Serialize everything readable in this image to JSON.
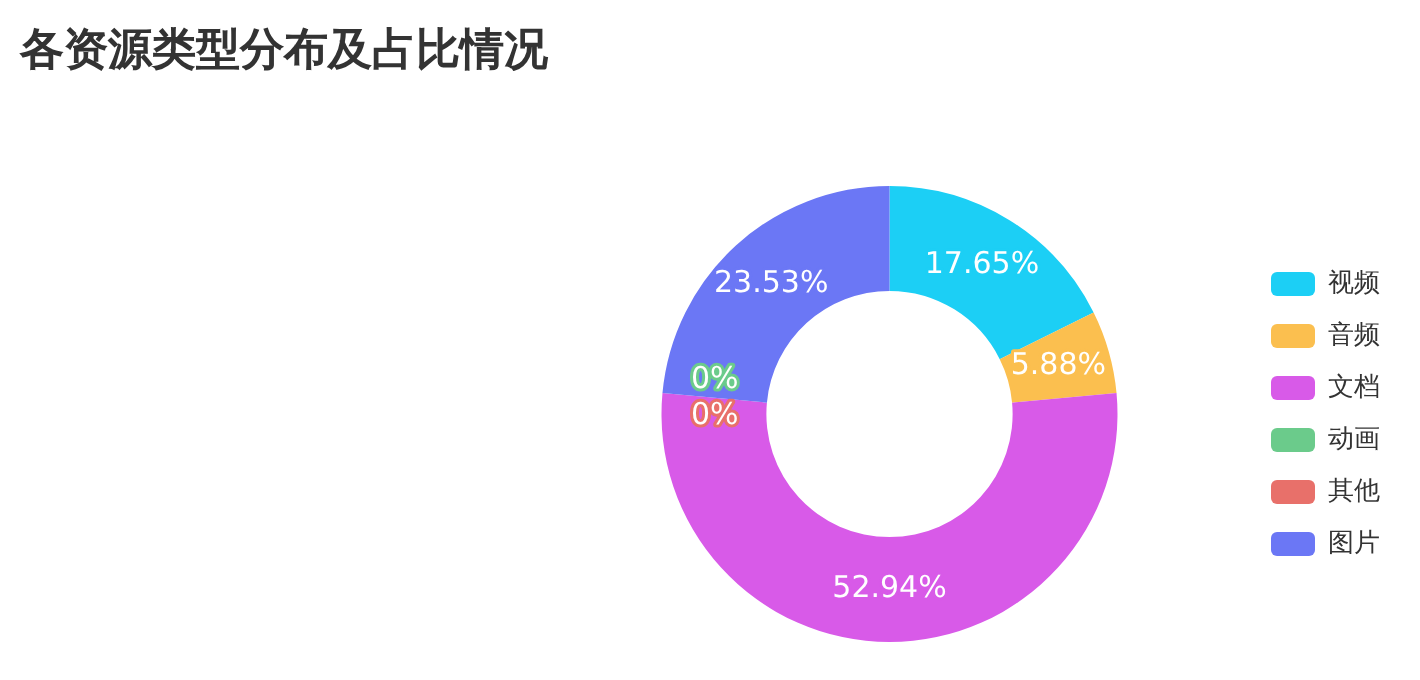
{
  "chart_data": {
    "type": "donut",
    "title": "各资源类型分布及占比情况",
    "categories": [
      "视频",
      "音频",
      "文档",
      "动画",
      "其他",
      "图片"
    ],
    "values": [
      17.65,
      5.88,
      52.94,
      0,
      0,
      23.53
    ],
    "colors": [
      "#1ccff5",
      "#fbbf4f",
      "#d85ae8",
      "#6bcb8b",
      "#e8706a",
      "#6b77f5"
    ],
    "value_labels": [
      "17.65%",
      "5.88%",
      "52.94%",
      "0%",
      "0%",
      "23.53%"
    ],
    "legend": "right"
  }
}
